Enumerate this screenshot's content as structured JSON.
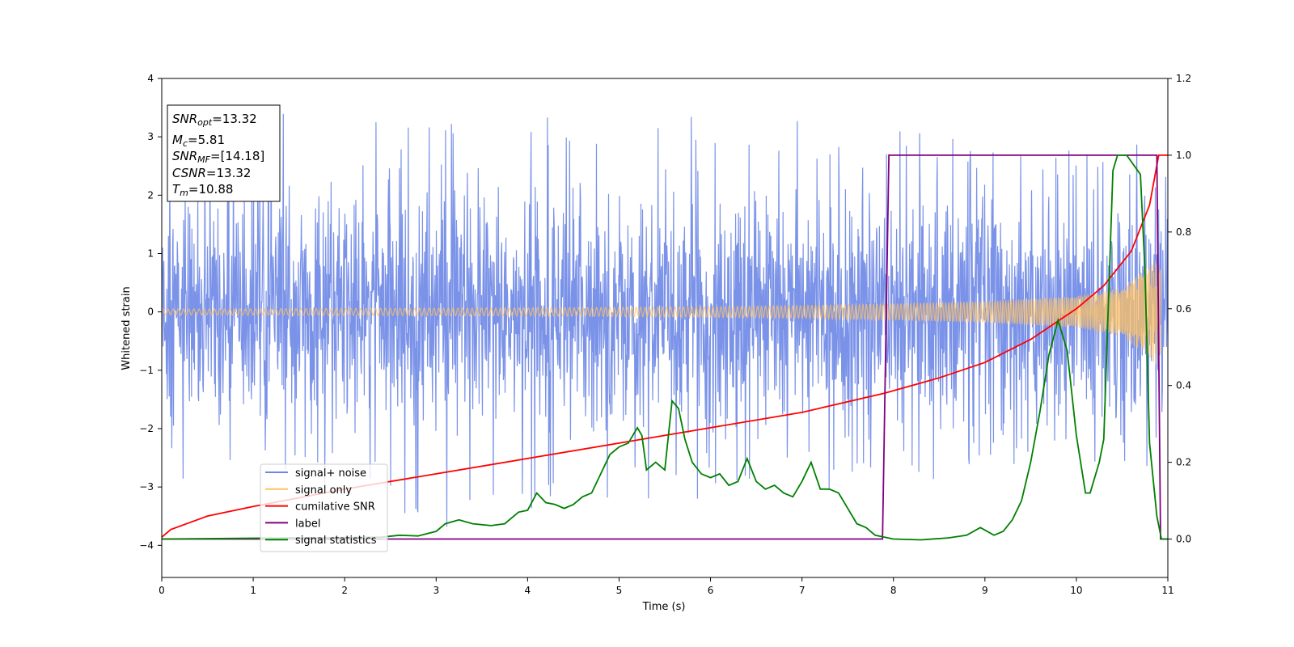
{
  "chart_data": {
    "type": "line",
    "xlabel": "Time (s)",
    "ylabel": "Whitened strain",
    "xlim": [
      0,
      11
    ],
    "ylim": [
      -4.55,
      4
    ],
    "y2lim": [
      -0.1,
      1.2
    ],
    "xticks": [
      "0",
      "1",
      "2",
      "3",
      "4",
      "5",
      "6",
      "7",
      "8",
      "9",
      "10",
      "11"
    ],
    "yticks": [
      "−4",
      "−3",
      "−2",
      "−1",
      "0",
      "1",
      "2",
      "3",
      "4"
    ],
    "y2ticks": [
      "0.0",
      "0.2",
      "0.4",
      "0.6",
      "0.8",
      "1.0",
      "1.2"
    ],
    "legend_position": "lower-left",
    "info_box": {
      "lines": [
        "SNR_opt=13.32",
        "M_c=5.81",
        "SNR_MF=[14.18]",
        "CSNR=13.32",
        "T_m=10.88"
      ],
      "snr_opt": "13.32",
      "mc": "5.81",
      "snr_mf": "[14.18]",
      "csnr": "13.32",
      "tm": "10.88"
    },
    "series": [
      {
        "name": "signal+ noise",
        "color": "#6b86e6",
        "axis": "left",
        "description": "noisy whitened strain",
        "envelope_x": [
          0,
          1,
          2,
          3,
          4,
          5,
          6,
          7,
          8,
          9,
          10,
          11
        ],
        "envelope_max": [
          3.0,
          3.6,
          3.2,
          3.6,
          3.3,
          3.5,
          3.3,
          3.3,
          3.1,
          3.0,
          2.8,
          2.9
        ],
        "envelope_min": [
          -3.3,
          -3.1,
          -3.0,
          -4.15,
          -3.4,
          -3.2,
          -3.2,
          -3.55,
          -3.2,
          -2.6,
          -2.7,
          -3.0
        ],
        "typical_amplitude": 1.6
      },
      {
        "name": "signal only",
        "color": "#ffc266",
        "axis": "left",
        "description": "chirp waveform",
        "envelope_x": [
          0,
          2,
          4,
          6,
          7,
          8,
          9,
          10,
          10.5,
          10.8,
          10.9
        ],
        "amplitude": [
          0.05,
          0.06,
          0.07,
          0.09,
          0.11,
          0.14,
          0.18,
          0.27,
          0.42,
          0.8,
          0.95
        ]
      },
      {
        "name": "cumilative SNR",
        "color": "#ff0000",
        "axis": "right",
        "x": [
          0,
          0.1,
          0.5,
          1,
          2,
          3,
          4,
          5,
          6,
          7,
          7.9,
          8.5,
          9,
          9.5,
          10,
          10.3,
          10.6,
          10.8,
          10.9,
          11.0
        ],
        "y": [
          0.005,
          0.025,
          0.06,
          0.085,
          0.13,
          0.17,
          0.21,
          0.25,
          0.29,
          0.33,
          0.38,
          0.42,
          0.46,
          0.52,
          0.6,
          0.66,
          0.75,
          0.87,
          1.0,
          1.0
        ]
      },
      {
        "name": "label",
        "color": "#800080",
        "axis": "right",
        "x": [
          0,
          7.88,
          7.95,
          10.88,
          10.92,
          11.0
        ],
        "y": [
          0,
          0,
          1,
          1,
          0,
          0
        ]
      },
      {
        "name": "signal statistics",
        "color": "#008000",
        "axis": "right",
        "x": [
          0,
          2.4,
          2.6,
          2.8,
          3.0,
          3.1,
          3.25,
          3.4,
          3.6,
          3.75,
          3.9,
          4.0,
          4.1,
          4.2,
          4.3,
          4.4,
          4.5,
          4.6,
          4.7,
          4.8,
          4.9,
          5.0,
          5.1,
          5.2,
          5.25,
          5.3,
          5.4,
          5.5,
          5.58,
          5.65,
          5.72,
          5.8,
          5.9,
          6.0,
          6.1,
          6.2,
          6.3,
          6.4,
          6.5,
          6.6,
          6.7,
          6.8,
          6.9,
          7.0,
          7.1,
          7.2,
          7.3,
          7.4,
          7.5,
          7.6,
          7.7,
          7.8,
          8.0,
          8.3,
          8.6,
          8.8,
          8.95,
          9.1,
          9.2,
          9.3,
          9.4,
          9.5,
          9.6,
          9.7,
          9.8,
          9.9,
          10.0,
          10.1,
          10.15,
          10.25,
          10.3,
          10.4,
          10.45,
          10.55,
          10.7,
          10.75,
          10.8,
          10.88,
          10.93,
          11.0
        ],
        "y": [
          0.0,
          0.005,
          0.01,
          0.008,
          0.02,
          0.04,
          0.05,
          0.04,
          0.035,
          0.04,
          0.07,
          0.075,
          0.12,
          0.095,
          0.09,
          0.08,
          0.09,
          0.11,
          0.12,
          0.17,
          0.22,
          0.24,
          0.25,
          0.29,
          0.27,
          0.18,
          0.2,
          0.18,
          0.36,
          0.34,
          0.26,
          0.2,
          0.17,
          0.16,
          0.17,
          0.14,
          0.15,
          0.21,
          0.15,
          0.13,
          0.14,
          0.12,
          0.11,
          0.15,
          0.2,
          0.13,
          0.13,
          0.12,
          0.08,
          0.04,
          0.03,
          0.01,
          0.0,
          -0.002,
          0.003,
          0.01,
          0.03,
          0.01,
          0.02,
          0.05,
          0.1,
          0.2,
          0.33,
          0.48,
          0.57,
          0.49,
          0.27,
          0.12,
          0.12,
          0.2,
          0.26,
          0.96,
          1.0,
          1.0,
          0.95,
          0.7,
          0.25,
          0.06,
          0.0,
          0.0
        ]
      }
    ]
  }
}
